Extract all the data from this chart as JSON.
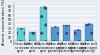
{
  "categories": [
    "Silicone mold\nno release\nagent",
    "Carbon mold\nno release\nagent",
    "Silicone mold\nrelease\nagent",
    "Carbon mold\nrelease agent\n(gumming)",
    "Carbon mold\nrelease agent\n(acetone)",
    "Carbon mold\nrelease agent\n(gumming)",
    "Carbon mold\nrelease agent\n(cleaning)"
  ],
  "values": [
    30.0,
    21.0,
    78.0,
    34.0,
    37.0,
    27.0,
    41.0
  ],
  "errors": [
    1.5,
    1.2,
    2.5,
    1.8,
    1.5,
    1.0,
    1.8
  ],
  "bar_colors": [
    "#5ECFCF",
    "#5ECFCF",
    "#5ECFCF",
    "#5599CC",
    "#5599CC",
    "#5599CC",
    "#5599CC"
  ],
  "ylabel": "Atomic concentration (%)",
  "ylim": [
    0,
    90
  ],
  "yticks": [
    0,
    10,
    20,
    30,
    40,
    50,
    60,
    70,
    80
  ],
  "background_color": "#e8eef4",
  "grid_color": "#ffffff",
  "label_fontsize": 2.5,
  "tick_fontsize": 2.2,
  "xtick_fontsize": 1.8
}
